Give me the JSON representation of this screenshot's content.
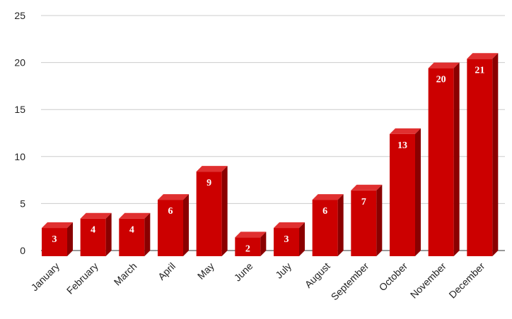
{
  "chart_data": {
    "type": "bar3d",
    "categories": [
      "January",
      "February",
      "March",
      "April",
      "May",
      "June",
      "July",
      "August",
      "September",
      "October",
      "November",
      "December"
    ],
    "values": [
      3,
      4,
      4,
      6,
      9,
      2,
      3,
      6,
      7,
      13,
      20,
      21
    ],
    "color": "#cc0000",
    "ylim": [
      0,
      25
    ],
    "yticks": [
      0,
      5,
      10,
      15,
      20,
      25
    ],
    "grid": true
  }
}
